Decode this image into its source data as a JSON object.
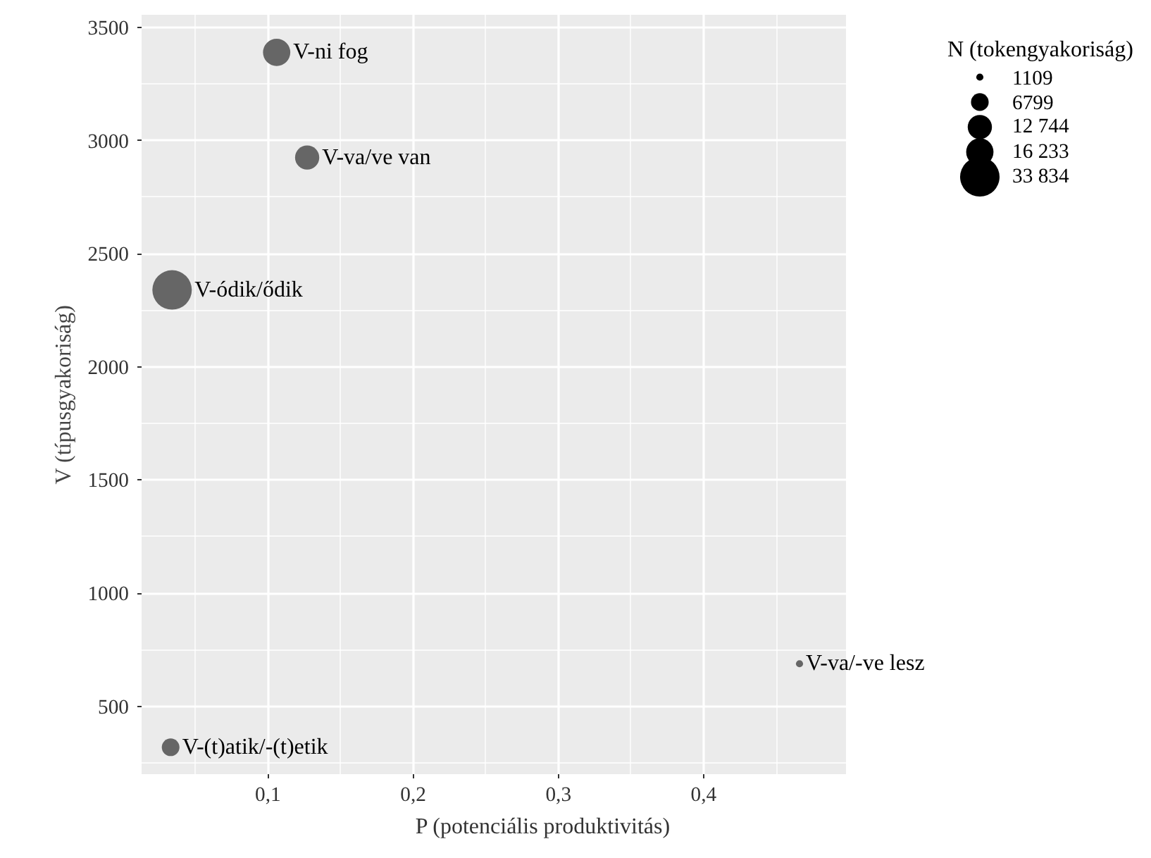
{
  "chart_data": {
    "type": "bubble",
    "xlabel": "P (potenciális produktivitás)",
    "ylabel": "V (típusgyakoriság)",
    "legend_title": "N (tokengyakoriság)",
    "x": [
      0.106,
      0.127,
      0.034,
      0.466,
      0.033
    ],
    "values": [
      3390,
      2925,
      2340,
      688,
      319
    ],
    "sizes": [
      16233,
      12744,
      33834,
      1109,
      6799
    ],
    "color": "#666666",
    "size_legend": [
      {
        "value": 1109,
        "label": "1109"
      },
      {
        "value": 6799,
        "label": "6799"
      },
      {
        "value": 12744,
        "label": "12 744"
      },
      {
        "value": 16233,
        "label": "16 233"
      },
      {
        "value": 33834,
        "label": "33 834"
      }
    ],
    "xlim": [
      0.013,
      0.498
    ],
    "ylim": [
      200,
      3556
    ],
    "xticks": [
      {
        "value": 0.1,
        "label": "0,1"
      },
      {
        "value": 0.2,
        "label": "0,2"
      },
      {
        "value": 0.3,
        "label": "0,3"
      },
      {
        "value": 0.4,
        "label": "0,4"
      }
    ],
    "yticks": [
      500,
      1000,
      1500,
      2000,
      2500,
      3000,
      3500
    ],
    "grid": true,
    "annotations": [
      {
        "text": "V-ni fog",
        "x": 0.106,
        "y": 3390
      },
      {
        "text": "V-va/ve van",
        "x": 0.127,
        "y": 2925
      },
      {
        "text": "V-ódik/ődik",
        "x": 0.034,
        "y": 2340
      },
      {
        "text": "V-va/-ve lesz",
        "x": 0.466,
        "y": 688
      },
      {
        "text": "V-(t)atik/-(t)etik",
        "x": 0.033,
        "y": 319
      }
    ]
  }
}
